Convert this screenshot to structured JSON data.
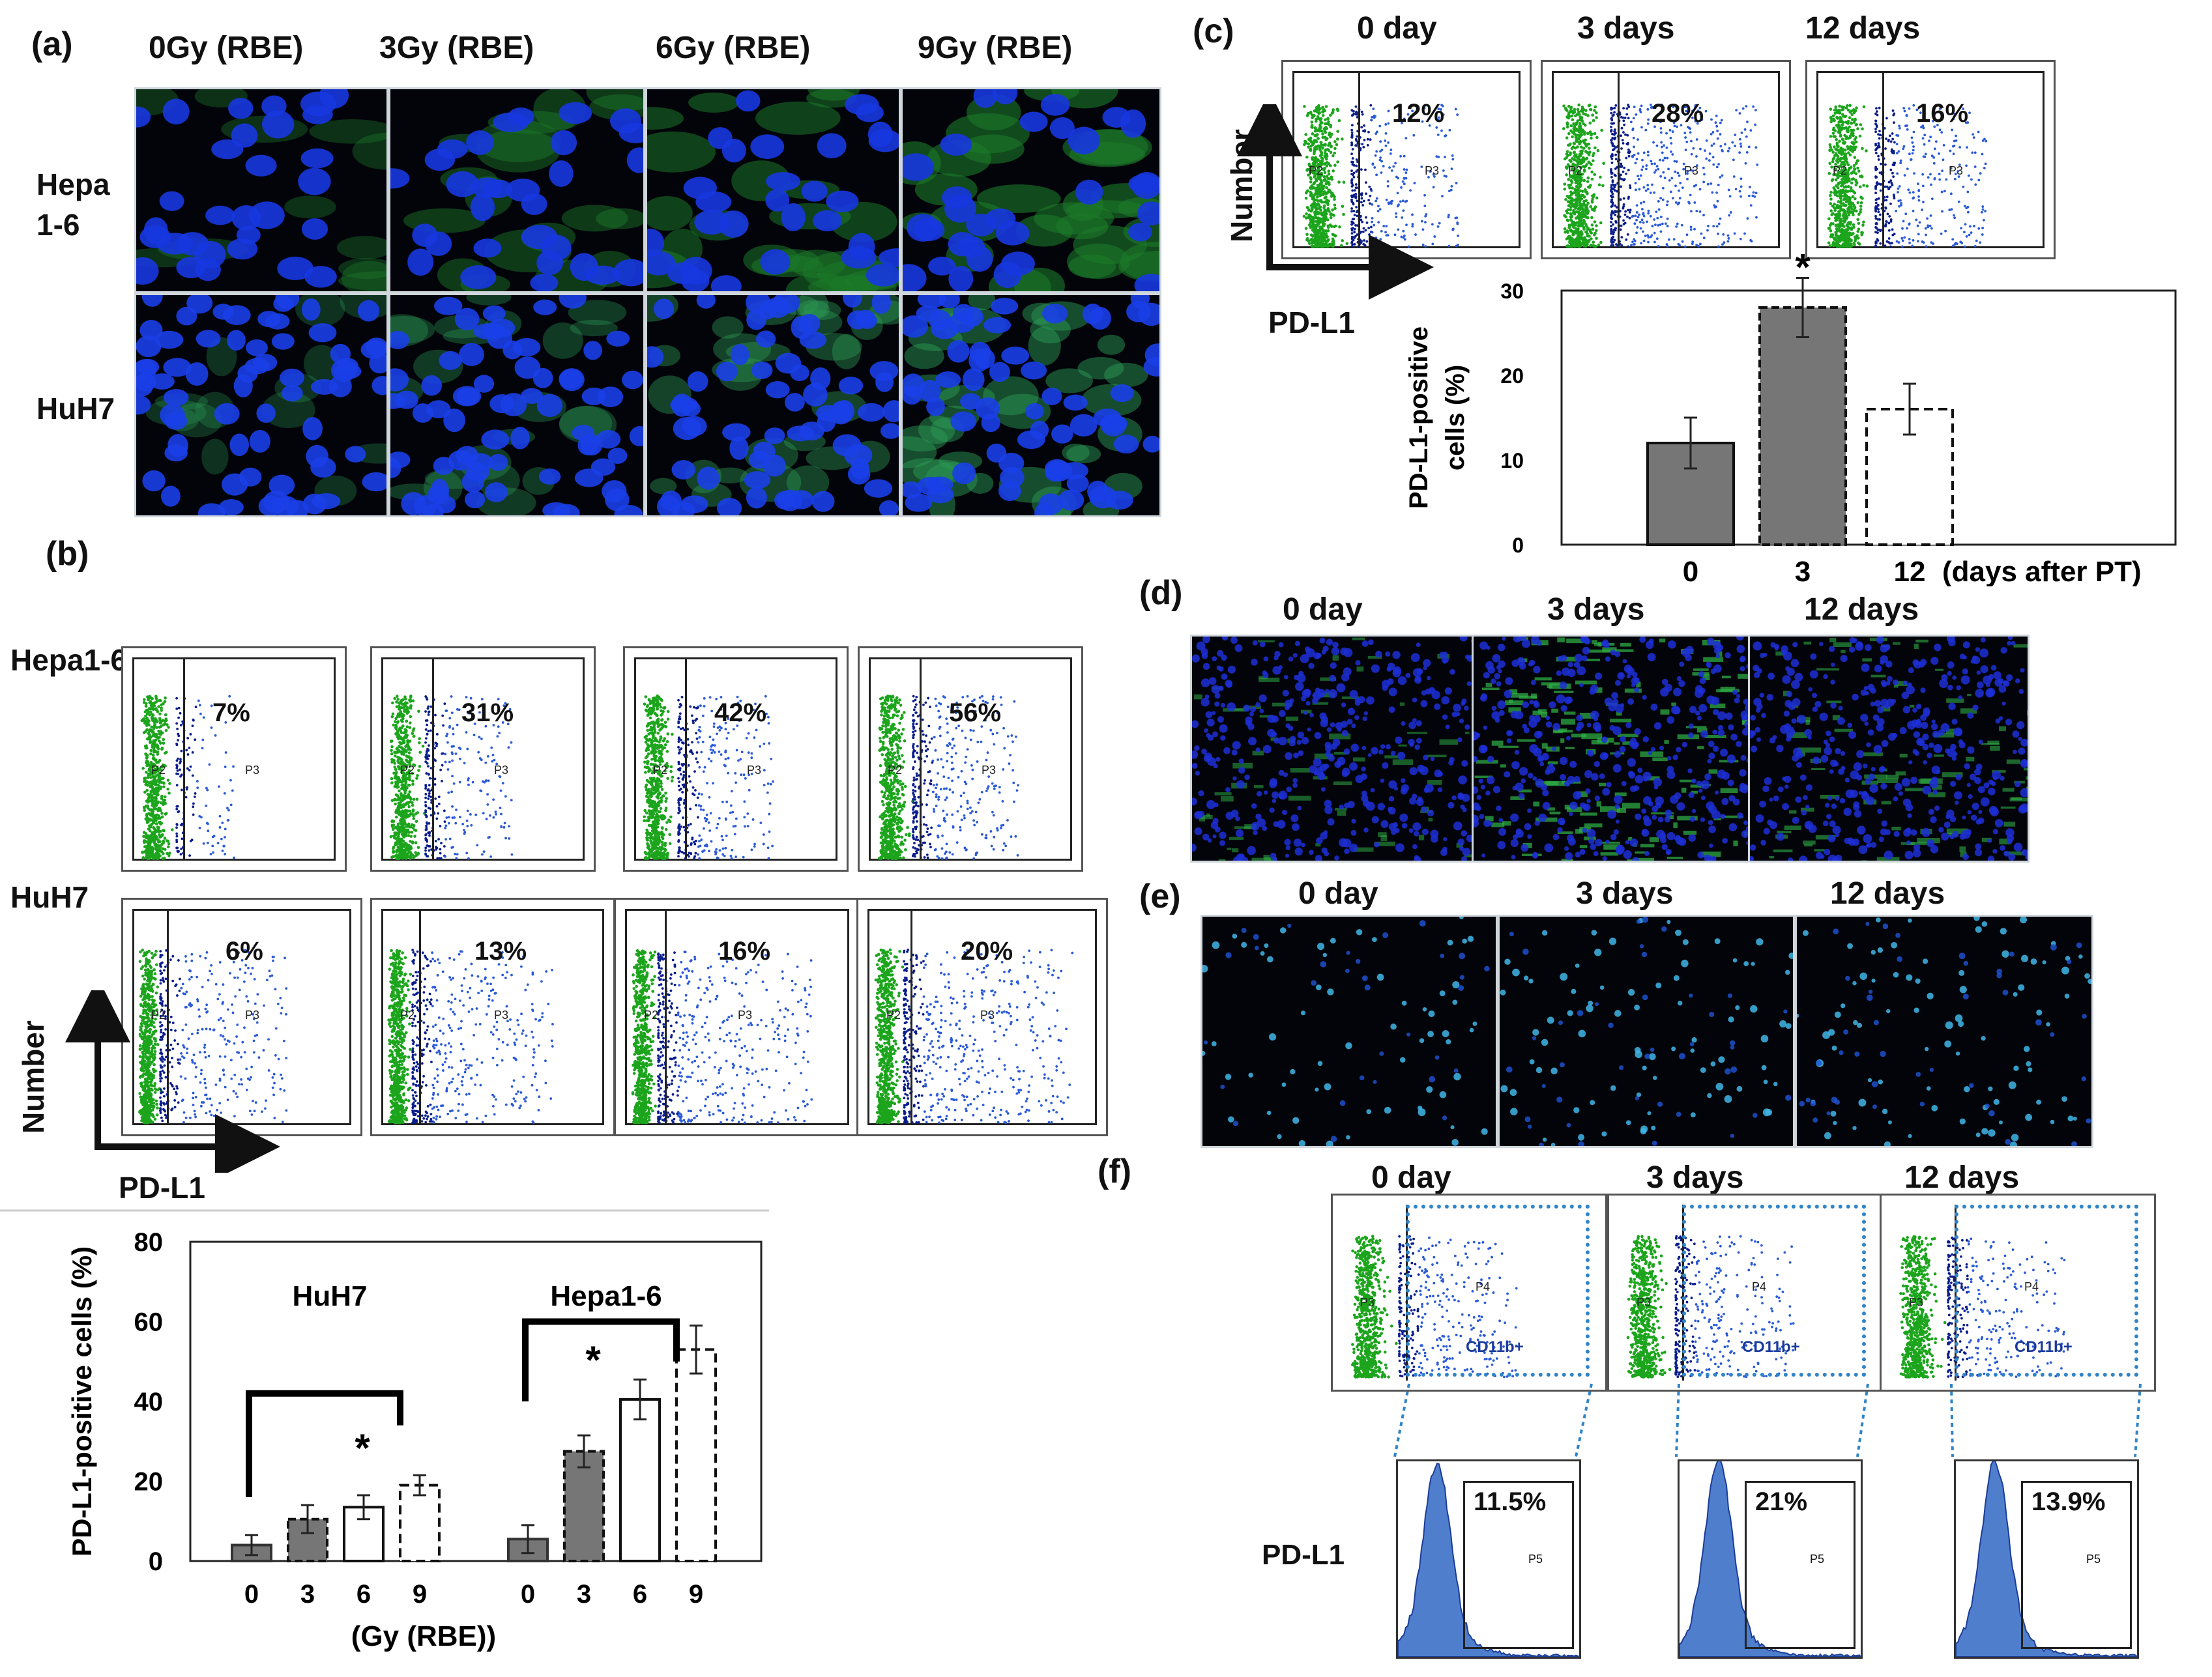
{
  "panel_letters": {
    "a": "(a)",
    "b": "(b)",
    "c": "(c)",
    "d": "(d)",
    "e": "(e)",
    "f": "(f)"
  },
  "a": {
    "doses": [
      "0Gy (RBE)",
      "3Gy (RBE)",
      "6Gy (RBE)",
      "9Gy (RBE)"
    ],
    "rows": [
      "Hepa\n1-6",
      "HuH7"
    ]
  },
  "b": {
    "rows": [
      "Hepa1-6",
      "HuH7"
    ],
    "hepa_pcts": [
      "7%",
      "31%",
      "42%",
      "56%"
    ],
    "huh_pcts": [
      "6%",
      "13%",
      "16%",
      "20%"
    ],
    "gate_left": "P2",
    "gate_right": "P3",
    "axis_y": "Number",
    "axis_x": "PD-L1"
  },
  "c": {
    "days": [
      "0 day",
      "3 days",
      "12 days"
    ],
    "pcts": [
      "12%",
      "28%",
      "16%"
    ],
    "axis_y": "Number",
    "axis_x": "PD-L1"
  },
  "d": {
    "days": [
      "0 day",
      "3 days",
      "12 days"
    ]
  },
  "e": {
    "days": [
      "0 day",
      "3 days",
      "12 days"
    ]
  },
  "f": {
    "days": [
      "0 day",
      "3 days",
      "12 days"
    ],
    "gate_p3": "P3",
    "gate_p4": "P4",
    "gate_label": "CD11b+",
    "hist_pcts": [
      "11.5%",
      "21%",
      "13.9%"
    ],
    "hist_gate": "P5",
    "hist_label": "PD-L1"
  },
  "chart_data": [
    {
      "id": "b-bar",
      "type": "bar",
      "title": "",
      "ylabel": "PD-L1-positive cells (%)",
      "xlabel": "(Gy (RBE))",
      "ylim": [
        0,
        80
      ],
      "yticks": [
        0,
        20,
        40,
        60,
        80
      ],
      "groups": [
        {
          "name": "HuH7",
          "categories": [
            "0",
            "3",
            "6",
            "9"
          ],
          "values": [
            4,
            10.5,
            13.5,
            19
          ],
          "errors": [
            2.5,
            3.5,
            3,
            2.5
          ]
        },
        {
          "name": "Hepa1-6",
          "categories": [
            "0",
            "3",
            "6",
            "9"
          ],
          "values": [
            5.5,
            27.5,
            40.5,
            53
          ],
          "errors": [
            3.5,
            4,
            5,
            6
          ]
        }
      ],
      "significance": "*"
    },
    {
      "id": "c-bar",
      "type": "bar",
      "title": "",
      "ylabel": "PD-L1-positive\ncells (%)",
      "xlabel": "(days after PT)",
      "ylim": [
        0,
        30
      ],
      "yticks": [
        0,
        10,
        20,
        30
      ],
      "categories": [
        "0",
        "3",
        "12"
      ],
      "values": [
        12,
        28,
        16
      ],
      "errors": [
        3,
        3.5,
        3
      ],
      "significance": "*"
    }
  ]
}
